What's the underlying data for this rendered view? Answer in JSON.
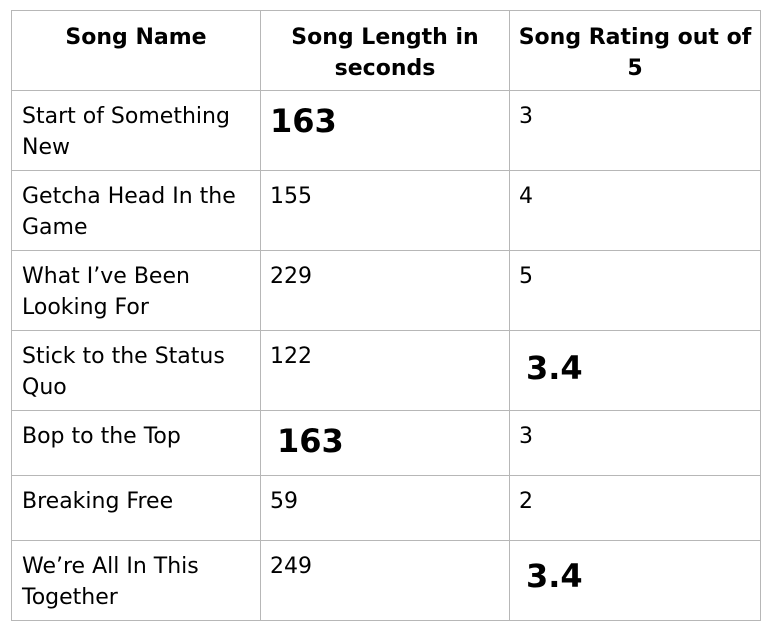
{
  "table": {
    "headers": [
      "Song Name",
      "Song Length in seconds",
      "Song Rating out of 5"
    ],
    "rows": [
      {
        "name": "Start of Something New",
        "length": "163",
        "rating": "3"
      },
      {
        "name": "Getcha Head In the Game",
        "length": "155",
        "rating": "4"
      },
      {
        "name": "What I’ve Been Looking For",
        "length": "229",
        "rating": "5"
      },
      {
        "name": "Stick to the Status Quo",
        "length": "122",
        "rating": "3.4"
      },
      {
        "name": "Bop to the Top",
        "length": "163",
        "rating": "3"
      },
      {
        "name": "Breaking Free",
        "length": "59",
        "rating": "2"
      },
      {
        "name": "We’re All In This Together",
        "length": "249",
        "rating": "3.4"
      }
    ]
  }
}
